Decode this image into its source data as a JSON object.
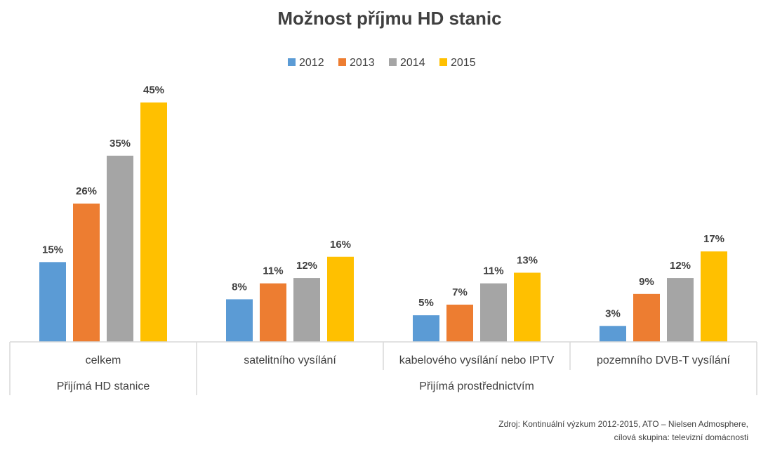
{
  "chart_data": {
    "type": "bar",
    "title": "Možnost příjmu HD stanic",
    "categories": [
      "celkem",
      "satelitního vysílání",
      "kabelového vysílání nebo IPTV",
      "pozemního DVB-T vysílání"
    ],
    "groups": [
      {
        "label": "Přijímá HD stanice",
        "categories": [
          0
        ]
      },
      {
        "label": "Přijímá prostřednictvím",
        "categories": [
          1,
          2,
          3
        ]
      }
    ],
    "series": [
      {
        "name": "2012",
        "color": "#5b9bd5",
        "values": [
          15,
          8,
          5,
          3
        ],
        "labels": [
          "15%",
          "8%",
          "5%",
          "3%"
        ]
      },
      {
        "name": "2013",
        "color": "#ed7d31",
        "values": [
          26,
          11,
          7,
          9
        ],
        "labels": [
          "26%",
          "11%",
          "7%",
          "9%"
        ]
      },
      {
        "name": "2014",
        "color": "#a5a5a5",
        "values": [
          35,
          12,
          11,
          12
        ],
        "labels": [
          "35%",
          "12%",
          "11%",
          "12%"
        ]
      },
      {
        "name": "2015",
        "color": "#ffc000",
        "values": [
          45,
          16,
          13,
          17
        ],
        "labels": [
          "45%",
          "16%",
          "13%",
          "17%"
        ]
      }
    ],
    "ylim": [
      0,
      45
    ],
    "grid": false,
    "legend_position": "top"
  },
  "source": {
    "line1": "Zdroj: Kontinuální výzkum 2012-2015, ATO – Nielsen Admosphere,",
    "line2": "cílová skupina: televizní domácnosti"
  }
}
